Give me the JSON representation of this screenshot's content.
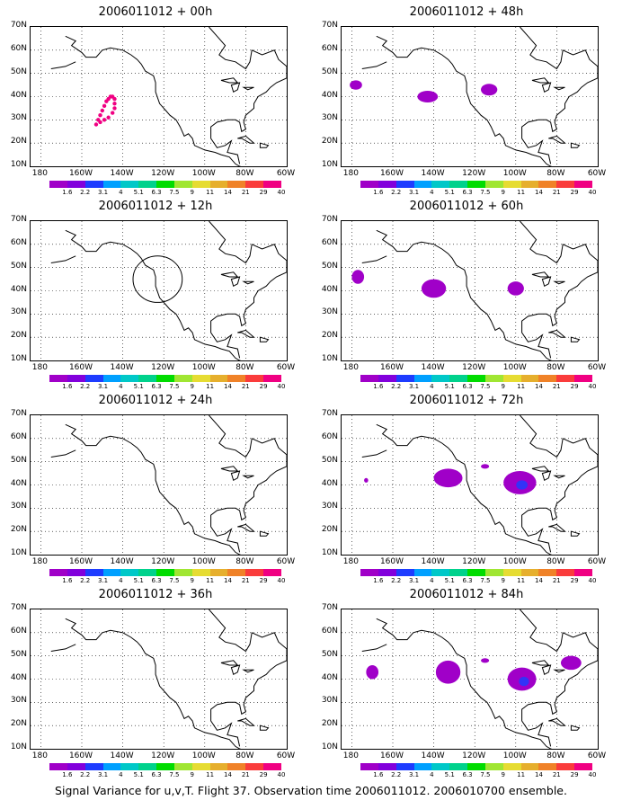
{
  "caption": "Signal Variance for u,v,T. Flight 37. Observation time 2006011012. 2006010700 ensemble.",
  "axes": {
    "lat_labels": [
      "70N",
      "60N",
      "50N",
      "40N",
      "30N",
      "20N",
      "10N"
    ],
    "lon_labels": [
      "180",
      "160W",
      "140W",
      "120W",
      "100W",
      "80W",
      "60W"
    ],
    "lat_range": [
      10,
      70
    ],
    "lon_range": [
      -185,
      -60
    ]
  },
  "colorbar": {
    "labels": [
      "1.6",
      "2.2",
      "3.1",
      "4",
      "5.1",
      "6.3",
      "7.5",
      "9",
      "11",
      "14",
      "21",
      "29",
      "40"
    ],
    "colors": [
      "#a000c8",
      "#8200dc",
      "#1e3cff",
      "#00a0ff",
      "#00c8c8",
      "#00d28c",
      "#00dc00",
      "#a0e632",
      "#e6dc32",
      "#e6af2d",
      "#f08228",
      "#fa3c3c",
      "#f00082"
    ]
  },
  "colors": {
    "land_outline": "#000000",
    "variance_fill": "#a000c8",
    "variance_core": "#1e3cff",
    "observation_dot": "#f00082"
  },
  "panels": [
    {
      "title": "2006011012 + 00h",
      "lead_hours": 0
    },
    {
      "title": "2006011012 + 48h",
      "lead_hours": 48
    },
    {
      "title": "2006011012 + 12h",
      "lead_hours": 12
    },
    {
      "title": "2006011012 + 60h",
      "lead_hours": 60
    },
    {
      "title": "2006011012 + 24h",
      "lead_hours": 24
    },
    {
      "title": "2006011012 + 72h",
      "lead_hours": 72
    },
    {
      "title": "2006011012 + 36h",
      "lead_hours": 36
    },
    {
      "title": "2006011012 + 84h",
      "lead_hours": 84
    }
  ]
}
